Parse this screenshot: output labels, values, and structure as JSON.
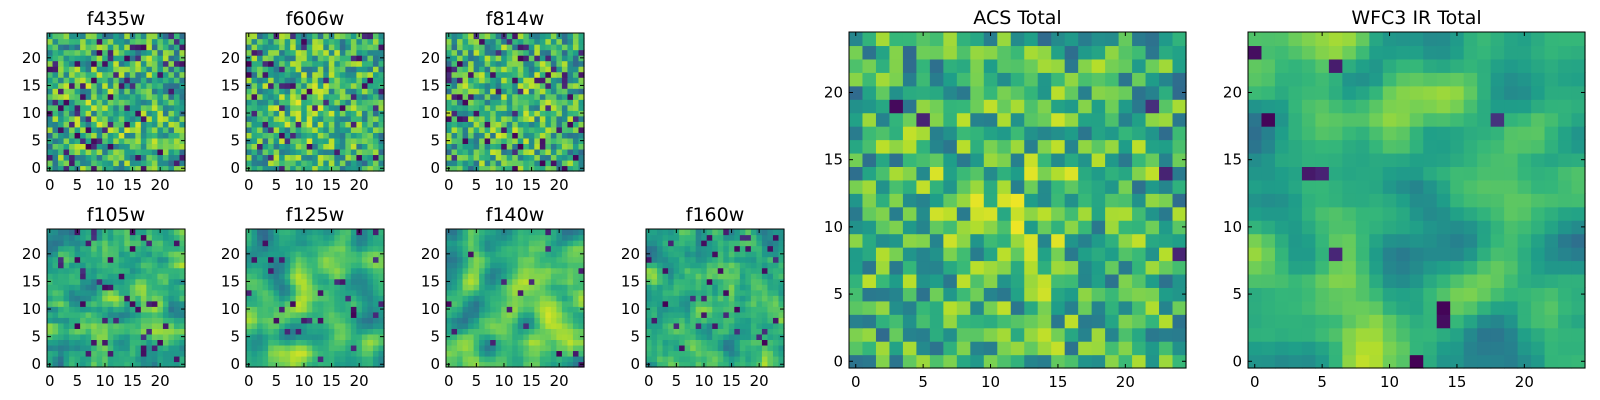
{
  "chart_data": [
    {
      "type": "heatmap",
      "title": "f435w",
      "colormap": "viridis",
      "grid": 25,
      "xlim": [
        0,
        25
      ],
      "ylim": [
        0,
        25
      ],
      "xticks": [
        "0",
        "5",
        "10",
        "15",
        "20"
      ],
      "yticks": [
        "0",
        "5",
        "10",
        "15",
        "20"
      ],
      "smoothness": 0,
      "dark_fraction": 0.1
    },
    {
      "type": "heatmap",
      "title": "f606w",
      "colormap": "viridis",
      "grid": 25,
      "xlim": [
        0,
        25
      ],
      "ylim": [
        0,
        25
      ],
      "xticks": [
        "0",
        "5",
        "10",
        "15",
        "20"
      ],
      "yticks": [
        "0",
        "5",
        "10",
        "15",
        "20"
      ],
      "smoothness": 0,
      "dark_fraction": 0.09
    },
    {
      "type": "heatmap",
      "title": "f814w",
      "colormap": "viridis",
      "grid": 25,
      "xlim": [
        0,
        25
      ],
      "ylim": [
        0,
        25
      ],
      "xticks": [
        "0",
        "5",
        "10",
        "15",
        "20"
      ],
      "yticks": [
        "0",
        "5",
        "10",
        "15",
        "20"
      ],
      "smoothness": 0,
      "dark_fraction": 0.1
    },
    {
      "type": "heatmap",
      "title": "f105w",
      "colormap": "viridis",
      "grid": 25,
      "xlim": [
        0,
        25
      ],
      "ylim": [
        0,
        25
      ],
      "xticks": [
        "0",
        "5",
        "10",
        "15",
        "20"
      ],
      "yticks": [
        "0",
        "5",
        "10",
        "15",
        "20"
      ],
      "smoothness": 1,
      "dark_fraction": 0.05
    },
    {
      "type": "heatmap",
      "title": "f125w",
      "colormap": "viridis",
      "grid": 25,
      "xlim": [
        0,
        25
      ],
      "ylim": [
        0,
        25
      ],
      "xticks": [
        "0",
        "5",
        "10",
        "15",
        "20"
      ],
      "yticks": [
        "0",
        "5",
        "10",
        "15",
        "20"
      ],
      "smoothness": 2,
      "dark_fraction": 0.03
    },
    {
      "type": "heatmap",
      "title": "f140w",
      "colormap": "viridis",
      "grid": 25,
      "xlim": [
        0,
        25
      ],
      "ylim": [
        0,
        25
      ],
      "xticks": [
        "0",
        "5",
        "10",
        "15",
        "20"
      ],
      "yticks": [
        "0",
        "5",
        "10",
        "15",
        "20"
      ],
      "smoothness": 2,
      "dark_fraction": 0.03
    },
    {
      "type": "heatmap",
      "title": "f160w",
      "colormap": "viridis",
      "grid": 25,
      "xlim": [
        0,
        25
      ],
      "ylim": [
        0,
        25
      ],
      "xticks": [
        "0",
        "5",
        "10",
        "15",
        "20"
      ],
      "yticks": [
        "0",
        "5",
        "10",
        "15",
        "20"
      ],
      "smoothness": 1,
      "dark_fraction": 0.05
    },
    {
      "type": "heatmap",
      "title": "ACS Total",
      "colormap": "viridis",
      "grid": 25,
      "xlim": [
        0,
        25
      ],
      "ylim": [
        0,
        25
      ],
      "xticks": [
        "0",
        "5",
        "10",
        "15",
        "20"
      ],
      "yticks": [
        "0",
        "5",
        "10",
        "15",
        "20"
      ],
      "smoothness": 0,
      "dark_fraction": 0.02
    },
    {
      "type": "heatmap",
      "title": "WFC3 IR Total",
      "colormap": "viridis",
      "grid": 25,
      "xlim": [
        0,
        25
      ],
      "ylim": [
        0,
        25
      ],
      "xticks": [
        "0",
        "5",
        "10",
        "15",
        "20"
      ],
      "yticks": [
        "0",
        "5",
        "10",
        "15",
        "20"
      ],
      "smoothness": 2,
      "dark_fraction": 0.02
    }
  ]
}
